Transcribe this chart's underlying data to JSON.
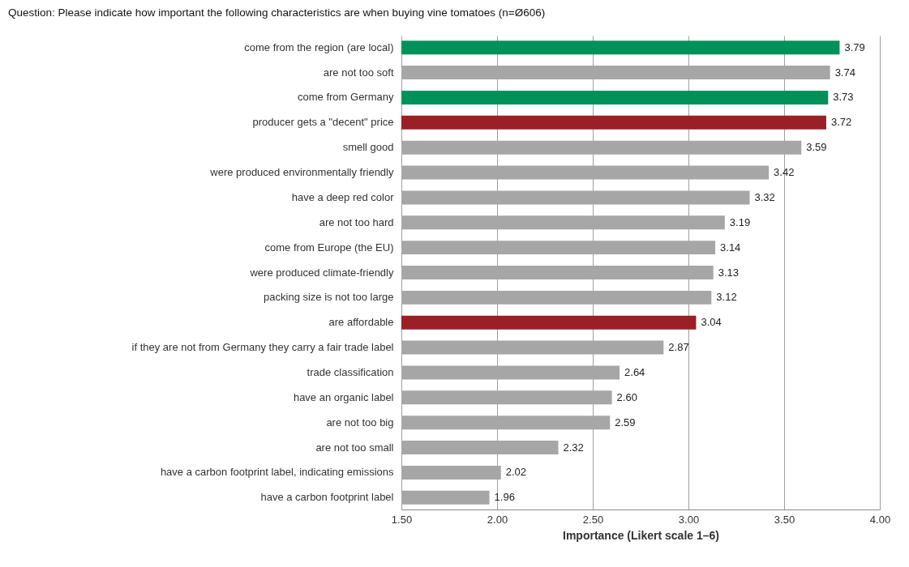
{
  "chart_data": {
    "type": "bar",
    "orientation": "horizontal",
    "title": "Question: Please indicate how important the following characteristics are when buying vine tomatoes (n=Ø606)",
    "xlabel": "Importance (Likert scale 1–6)",
    "categories": [
      "come from the region (are local)",
      "are not too soft",
      "come from Germany",
      "producer gets a \"decent\" price",
      "smell good",
      "were produced environmentally friendly",
      "have a deep red color",
      "are not too hard",
      "come from Europe (the EU)",
      "were produced climate-friendly",
      "packing size is not too large",
      "are affordable",
      "if they are not from Germany they carry a fair trade label",
      "trade classification",
      "have an organic label",
      "are not too big",
      "are not too small",
      "have a carbon footprint label, indicating emissions",
      "have a carbon footprint label"
    ],
    "values": [
      3.79,
      3.74,
      3.73,
      3.72,
      3.59,
      3.42,
      3.32,
      3.19,
      3.14,
      3.13,
      3.12,
      3.04,
      2.87,
      2.64,
      2.6,
      2.59,
      2.32,
      2.02,
      1.96
    ],
    "value_labels": [
      "3.79",
      "3.74",
      "3.73",
      "3.72",
      "3.59",
      "3.42",
      "3.32",
      "3.19",
      "3.14",
      "3.13",
      "3.12",
      "3.04",
      "2.87",
      "2.64",
      "2.60",
      "2.59",
      "2.32",
      "2.02",
      "1.96"
    ],
    "colors": [
      "#00915a",
      "#a6a6a6",
      "#00915a",
      "#9a1f26",
      "#a6a6a6",
      "#a6a6a6",
      "#a6a6a6",
      "#a6a6a6",
      "#a6a6a6",
      "#a6a6a6",
      "#a6a6a6",
      "#9a1f26",
      "#a6a6a6",
      "#a6a6a6",
      "#a6a6a6",
      "#a6a6a6",
      "#a6a6a6",
      "#a6a6a6",
      "#a6a6a6"
    ],
    "xlim": [
      1.5,
      4
    ],
    "xticks": [
      {
        "value": 1.5,
        "label": "1.50"
      },
      {
        "value": 2,
        "label": "2.00"
      },
      {
        "value": 2.5,
        "label": "2.50"
      },
      {
        "value": 3,
        "label": "3.00"
      },
      {
        "value": 3.5,
        "label": "3.50"
      },
      {
        "value": 4,
        "label": "4.00"
      }
    ],
    "grid": "x"
  }
}
